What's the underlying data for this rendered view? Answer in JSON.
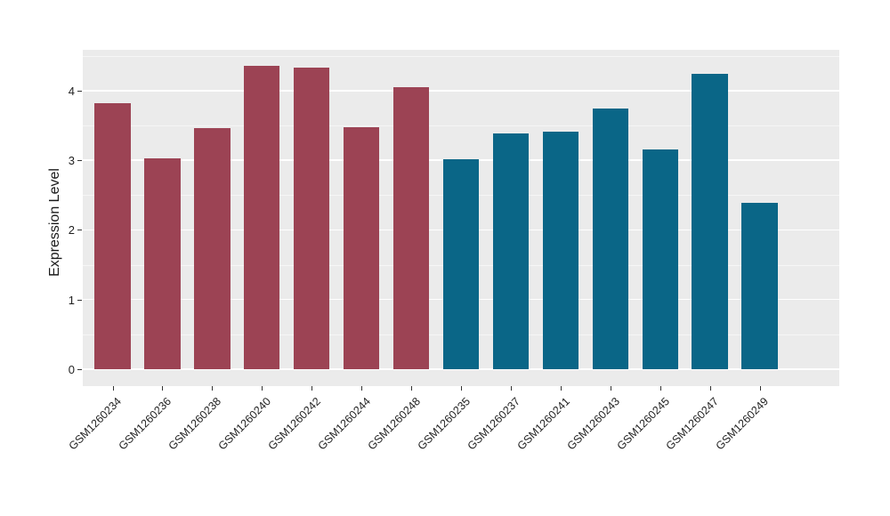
{
  "chart_data": {
    "type": "bar",
    "title": "",
    "xlabel": "",
    "ylabel": "Expression Level",
    "ylim": [
      0,
      4.6
    ],
    "y_ticks": [
      0,
      1,
      2,
      3,
      4
    ],
    "y_minor_gridlines": [
      0.5,
      1.5,
      2.5,
      3.5,
      4.5
    ],
    "grid": true,
    "legend_position": "none",
    "categories": [
      "GSM1260234",
      "GSM1260236",
      "GSM1260238",
      "GSM1260240",
      "GSM1260242",
      "GSM1260244",
      "GSM1260248",
      "GSM1260235",
      "GSM1260237",
      "GSM1260241",
      "GSM1260243",
      "GSM1260245",
      "GSM1260247",
      "GSM1260249"
    ],
    "values": [
      3.82,
      3.03,
      3.46,
      4.35,
      4.33,
      3.48,
      4.05,
      3.01,
      3.38,
      3.41,
      3.74,
      3.16,
      4.24,
      2.39
    ],
    "bar_colors": [
      "#9C4354",
      "#9C4354",
      "#9C4354",
      "#9C4354",
      "#9C4354",
      "#9C4354",
      "#9C4354",
      "#0A6687",
      "#0A6687",
      "#0A6687",
      "#0A6687",
      "#0A6687",
      "#0A6687",
      "#0A6687"
    ],
    "color_groups": [
      {
        "color": "#9C4354",
        "labels": [
          "GSM1260234",
          "GSM1260236",
          "GSM1260238",
          "GSM1260240",
          "GSM1260242",
          "GSM1260244",
          "GSM1260248"
        ]
      },
      {
        "color": "#0A6687",
        "labels": [
          "GSM1260235",
          "GSM1260237",
          "GSM1260241",
          "GSM1260243",
          "GSM1260245",
          "GSM1260247",
          "GSM1260249"
        ]
      }
    ]
  },
  "style": {
    "figure_bg": "#FFFFFF",
    "panel_bg": "#EBEBEB",
    "grid_major_color": "#FFFFFF",
    "grid_minor_color": "#F6F6F6",
    "axis_text_color": "#1F1F1F",
    "tick_mark_color": "#333333"
  }
}
